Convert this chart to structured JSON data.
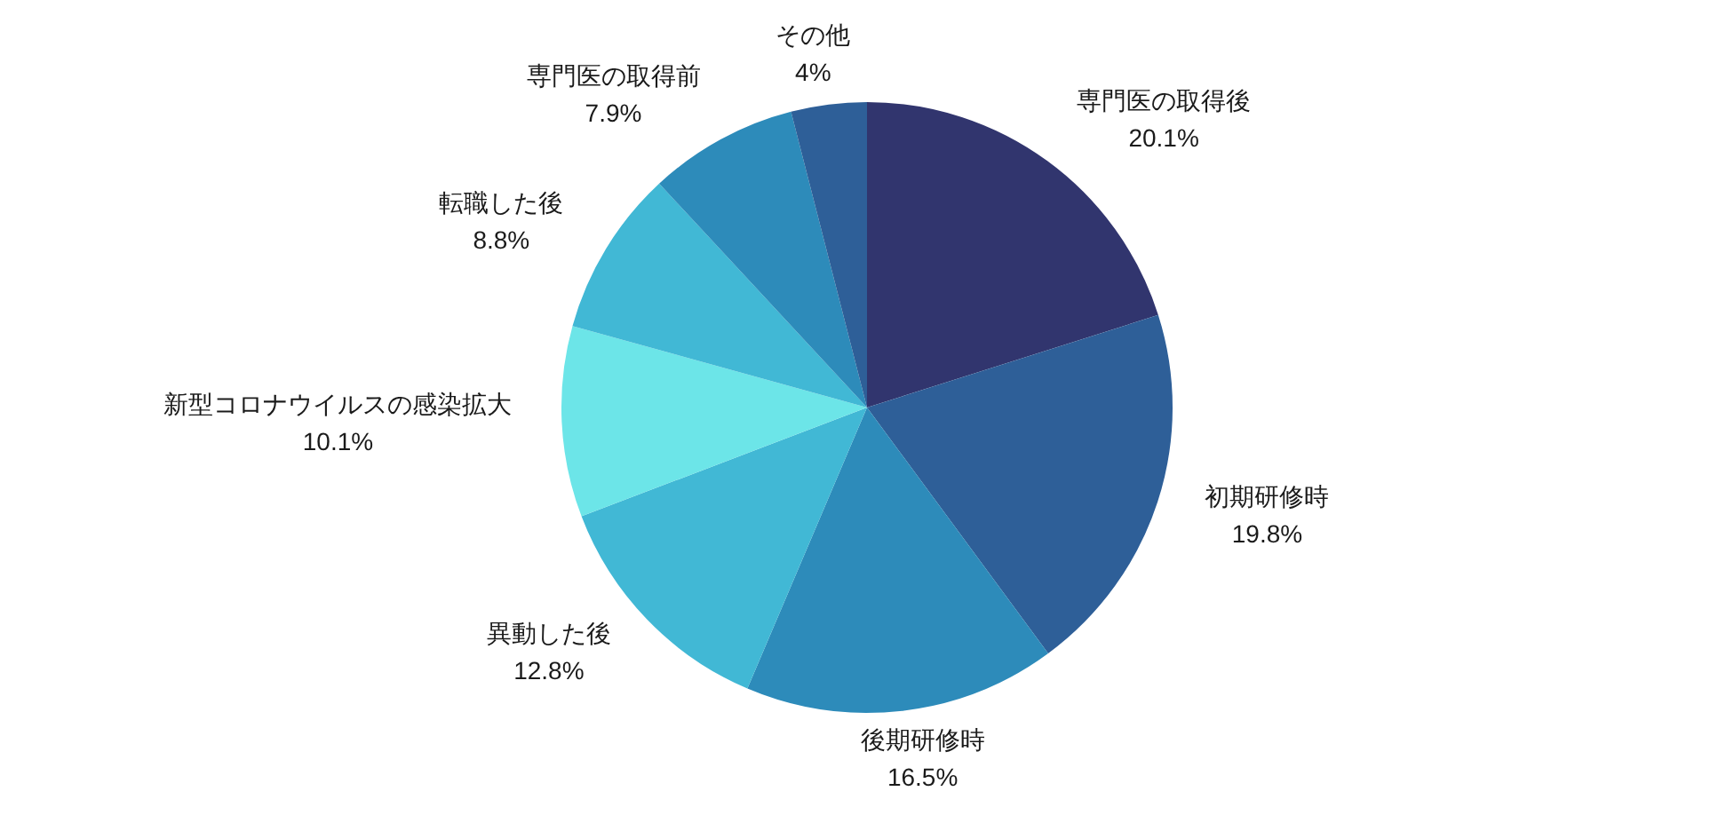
{
  "chart_data": {
    "type": "pie",
    "categories": [
      "専門医の取得後",
      "初期研修時",
      "後期研修時",
      "異動した後",
      "新型コロナウイルスの感染拡大",
      "転職した後",
      "専門医の取得前",
      "その他"
    ],
    "values": [
      20.1,
      19.8,
      16.5,
      12.8,
      10.1,
      8.8,
      7.9,
      4
    ],
    "value_labels": [
      "20.1%",
      "19.8%",
      "16.5%",
      "12.8%",
      "10.1%",
      "8.8%",
      "7.9%",
      "4%"
    ],
    "colors": [
      "#31356e",
      "#2e5f98",
      "#2d8bba",
      "#41b8d5",
      "#6ce5e8",
      "#41b8d5",
      "#2d8bba",
      "#2e5f98"
    ]
  }
}
